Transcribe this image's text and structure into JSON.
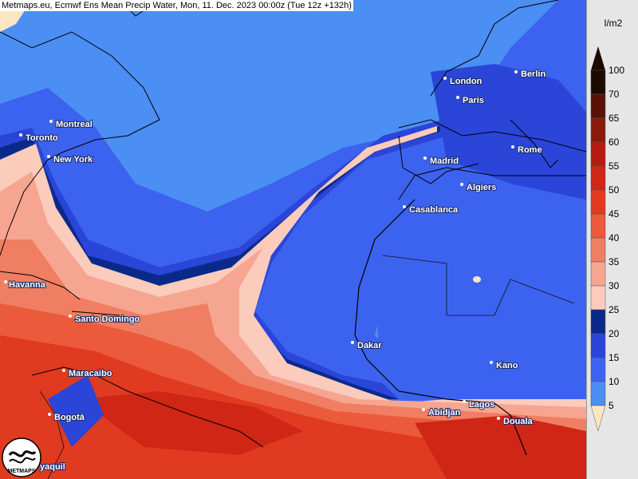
{
  "header": {
    "title": "Metmaps.eu, Ecmwf Ens Mean Precip Water, Mon, 11. Dec. 2023 00:00z (Tue 12z +132h)"
  },
  "map": {
    "cities": [
      {
        "name": "London"
      },
      {
        "name": "Berlin"
      },
      {
        "name": "Paris"
      },
      {
        "name": "Montreal"
      },
      {
        "name": "Toronto"
      },
      {
        "name": "New York"
      },
      {
        "name": "Madrid"
      },
      {
        "name": "Rome"
      },
      {
        "name": "Algiers"
      },
      {
        "name": "Casablanca"
      },
      {
        "name": "Havanna"
      },
      {
        "name": "Santo Domingo"
      },
      {
        "name": "Dakar"
      },
      {
        "name": "Kano"
      },
      {
        "name": "Maracaibo"
      },
      {
        "name": "Lagos"
      },
      {
        "name": "Abidjan"
      },
      {
        "name": "Bogotá"
      },
      {
        "name": "Douala"
      },
      {
        "name": "yaquil"
      }
    ]
  },
  "legend": {
    "unit": "l/m2",
    "levels": [
      {
        "label": "100",
        "color": "#1a0a00"
      },
      {
        "label": "70",
        "color": "#5a1208"
      },
      {
        "label": "65",
        "color": "#8a1a0c"
      },
      {
        "label": "60",
        "color": "#b21d10"
      },
      {
        "label": "55",
        "color": "#cf2616"
      },
      {
        "label": "50",
        "color": "#e03a20"
      },
      {
        "label": "45",
        "color": "#eb5a3a"
      },
      {
        "label": "40",
        "color": "#f07e62"
      },
      {
        "label": "35",
        "color": "#f6a590"
      },
      {
        "label": "30",
        "color": "#fbcbbc"
      },
      {
        "label": "25",
        "color": "#0a2a8a"
      },
      {
        "label": "20",
        "color": "#2a45d8"
      },
      {
        "label": "15",
        "color": "#3c63ef"
      },
      {
        "label": "10",
        "color": "#4b8ef4"
      },
      {
        "label": "5",
        "color": "#fbe6c4"
      }
    ]
  },
  "logo": {
    "text": "METMAPS"
  }
}
